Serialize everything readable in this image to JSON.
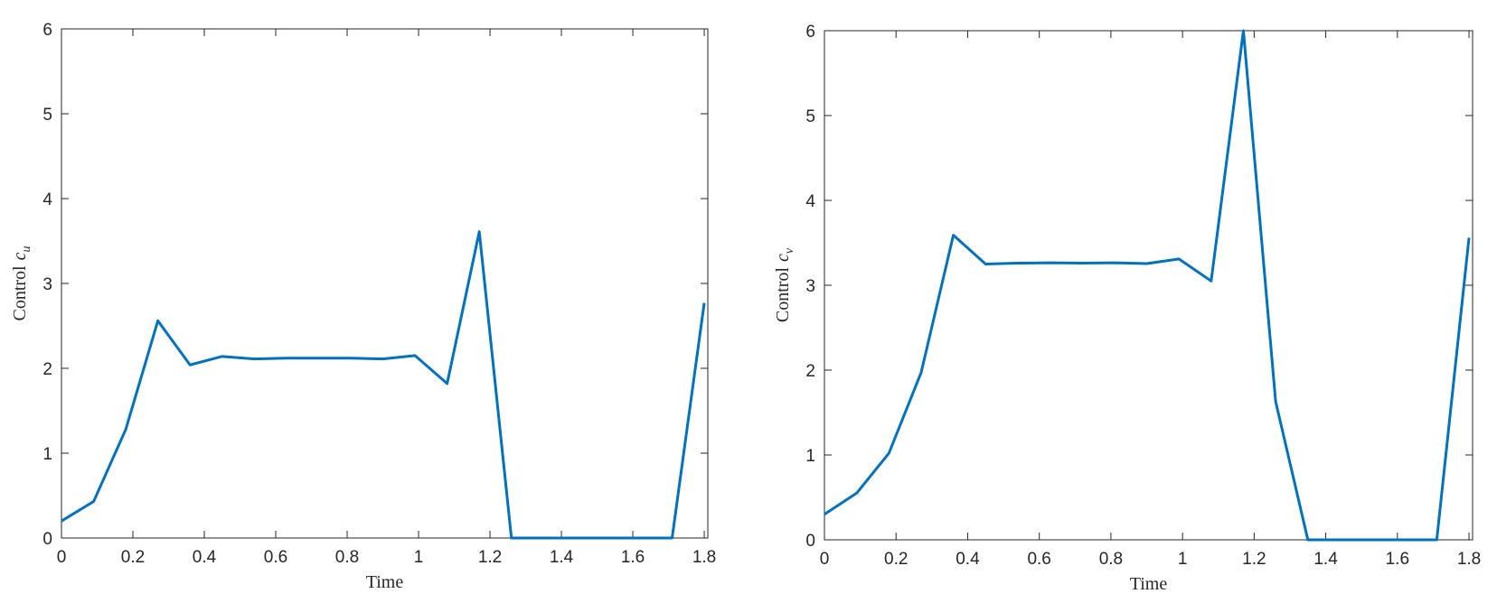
{
  "chart_data": [
    {
      "type": "line",
      "xlabel": "Time",
      "ylabel": "Control",
      "ylabel_symbol": "c",
      "ylabel_subscript": "u",
      "x": [
        0,
        0.09,
        0.18,
        0.27,
        0.36,
        0.45,
        0.54,
        0.63,
        0.72,
        0.81,
        0.9,
        0.99,
        1.08,
        1.17,
        1.26,
        1.35,
        1.44,
        1.53,
        1.62,
        1.71,
        1.8
      ],
      "series": [
        {
          "color": "#0072bd",
          "values": [
            0.2,
            0.43,
            1.28,
            2.56,
            2.04,
            2.14,
            2.11,
            2.12,
            2.12,
            2.12,
            2.11,
            2.15,
            1.82,
            3.61,
            0,
            0,
            0,
            0,
            0,
            0,
            2.77
          ]
        }
      ],
      "xlim": [
        0,
        1.81
      ],
      "ylim": [
        0,
        6
      ],
      "xticks": [
        0,
        0.2,
        0.4,
        0.6,
        0.8,
        1,
        1.2,
        1.4,
        1.6,
        1.8
      ],
      "yticks": [
        0,
        1,
        2,
        3,
        4,
        5,
        6
      ]
    },
    {
      "type": "line",
      "xlabel": "Time",
      "ylabel": "Control",
      "ylabel_symbol": "c",
      "ylabel_subscript": "v",
      "x": [
        0,
        0.09,
        0.18,
        0.27,
        0.36,
        0.45,
        0.54,
        0.63,
        0.72,
        0.81,
        0.9,
        0.99,
        1.08,
        1.17,
        1.26,
        1.35,
        1.44,
        1.53,
        1.62,
        1.71,
        1.8
      ],
      "series": [
        {
          "color": "#0072bd",
          "values": [
            0.3,
            0.55,
            1.02,
            1.97,
            3.59,
            3.25,
            3.26,
            3.265,
            3.26,
            3.265,
            3.255,
            3.31,
            3.05,
            6,
            1.63,
            0,
            0,
            0,
            0,
            0,
            3.56
          ]
        }
      ],
      "xlim": [
        0,
        1.81
      ],
      "ylim": [
        0,
        6
      ],
      "xticks": [
        0,
        0.2,
        0.4,
        0.6,
        0.8,
        1,
        1.2,
        1.4,
        1.6,
        1.8
      ],
      "yticks": [
        0,
        1,
        2,
        3,
        4,
        5,
        6
      ]
    }
  ]
}
